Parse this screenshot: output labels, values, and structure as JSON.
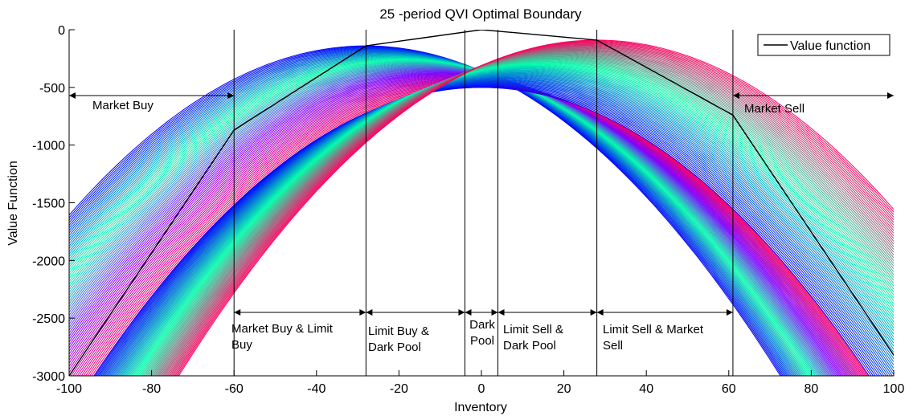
{
  "chart_data": {
    "type": "line",
    "title": "25 -period QVI Optimal Boundary",
    "xlabel": "Inventory",
    "ylabel": "Value Function",
    "xlim": [
      -100,
      100
    ],
    "ylim": [
      -3000,
      0
    ],
    "xticks": [
      -100,
      -80,
      -60,
      -40,
      -20,
      0,
      20,
      40,
      60,
      80,
      100
    ],
    "yticks": [
      0,
      -500,
      -1000,
      -1500,
      -2000,
      -2500,
      -3000
    ],
    "grid": false,
    "legend": {
      "position": "top-right",
      "entries": [
        "Value function"
      ]
    },
    "value_function": {
      "peak": [
        0,
        0
      ],
      "points": [
        [
          -100,
          -3000
        ],
        [
          -60,
          -870
        ],
        [
          -28,
          -140
        ],
        [
          0,
          0
        ],
        [
          28,
          -90
        ],
        [
          61,
          -740
        ],
        [
          100,
          -2820
        ]
      ]
    },
    "curve_families": [
      {
        "peak_x_range": [
          -28,
          0
        ],
        "peak_y_range": [
          -140,
          -500
        ],
        "colors": [
          "#0000ff",
          "#00ffaa",
          "#8000ff",
          "#ff0060"
        ]
      },
      {
        "peak_x_range": [
          0,
          28
        ],
        "peak_y_range": [
          -500,
          -90
        ],
        "colors": [
          "#0000ff",
          "#00ffaa",
          "#ff0060"
        ]
      }
    ],
    "boundaries": [
      -60,
      -28,
      -4,
      4,
      28,
      61
    ],
    "regions": [
      {
        "label": "Market Buy",
        "from": -100,
        "to": -60
      },
      {
        "label": "Market Buy & Limit Buy",
        "from": -60,
        "to": -28
      },
      {
        "label": "Limit Buy & Dark Pool",
        "from": -28,
        "to": -4
      },
      {
        "label": "Dark Pool",
        "from": -4,
        "to": 4
      },
      {
        "label": "Limit Sell & Dark Pool",
        "from": 4,
        "to": 28
      },
      {
        "label": "Limit Sell & Market Sell",
        "from": 28,
        "to": 61
      },
      {
        "label": "Market Sell",
        "from": 61,
        "to": 100
      }
    ]
  }
}
